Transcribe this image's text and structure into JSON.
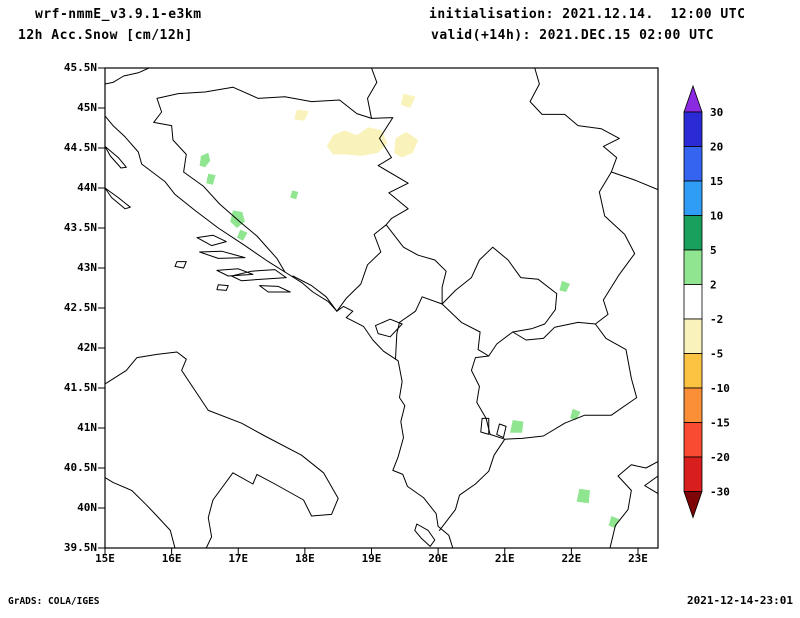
{
  "header": {
    "model": "wrf-nmmE_v3.9.1-e3km",
    "product": "12h Acc.Snow [cm/12h]",
    "initialisation": "initialisation: 2021.12.14.  12:00 UTC",
    "valid": "valid(+14h): 2021.DEC.15 02:00 UTC"
  },
  "footer": {
    "credit": "GrADS: COLA/IGES",
    "render_time": "2021-12-14-23:01"
  },
  "chart_data": {
    "type": "map",
    "title": "12h Acc.Snow [cm/12h]",
    "model": "wrf-nmmE_v3.9.1-e3km",
    "init_time": "2021.12.14. 12:00 UTC",
    "valid_time": "2021.DEC.15 02:00 UTC",
    "lead_hours": 14,
    "units": "cm/12h",
    "lon_range": [
      15,
      23.3
    ],
    "lat_range": [
      39.5,
      45.5
    ],
    "grid": false,
    "lat_ticks": [
      {
        "label": "45.5N",
        "value": 45.5
      },
      {
        "label": "45N",
        "value": 45
      },
      {
        "label": "44.5N",
        "value": 44.5
      },
      {
        "label": "44N",
        "value": 44
      },
      {
        "label": "43.5N",
        "value": 43.5
      },
      {
        "label": "43N",
        "value": 43
      },
      {
        "label": "42.5N",
        "value": 42.5
      },
      {
        "label": "42N",
        "value": 42
      },
      {
        "label": "41.5N",
        "value": 41.5
      },
      {
        "label": "41N",
        "value": 41
      },
      {
        "label": "40.5N",
        "value": 40.5
      },
      {
        "label": "40N",
        "value": 40
      },
      {
        "label": "39.5N",
        "value": 39.5
      }
    ],
    "lon_ticks": [
      {
        "label": "15E",
        "value": 15
      },
      {
        "label": "16E",
        "value": 16
      },
      {
        "label": "17E",
        "value": 17
      },
      {
        "label": "18E",
        "value": 18
      },
      {
        "label": "19E",
        "value": 19
      },
      {
        "label": "20E",
        "value": 20
      },
      {
        "label": "21E",
        "value": 21
      },
      {
        "label": "22E",
        "value": 22
      },
      {
        "label": "23E",
        "value": 23
      }
    ],
    "colorbar": {
      "position": "right",
      "levels": [
        30,
        20,
        15,
        10,
        5,
        2,
        -2,
        -5,
        -10,
        -15,
        -20,
        -30
      ],
      "segment_colors": [
        "#2b2bd5",
        "#3565f0",
        "#2f9cf5",
        "#18a05c",
        "#90e590",
        "#ffffff",
        "#f9f3bb",
        "#fcc342",
        "#fa8f38",
        "#f84b31",
        "#d91e1e"
      ],
      "arrow_top_color": "#8a2be2",
      "arrow_bottom_color": "#7e0606"
    },
    "regions": [
      {
        "band": "2-5",
        "color": "#90e590",
        "points": [
          [
            16.42,
            44.28
          ],
          [
            16.44,
            44.4
          ],
          [
            16.55,
            44.44
          ],
          [
            16.58,
            44.34
          ],
          [
            16.5,
            44.26
          ]
        ]
      },
      {
        "band": "2-5",
        "color": "#90e590",
        "points": [
          [
            16.52,
            44.06
          ],
          [
            16.55,
            44.18
          ],
          [
            16.66,
            44.16
          ],
          [
            16.62,
            44.04
          ]
        ]
      },
      {
        "band": "2-5",
        "color": "#90e590",
        "points": [
          [
            16.88,
            43.58
          ],
          [
            16.92,
            43.72
          ],
          [
            17.06,
            43.7
          ],
          [
            17.1,
            43.58
          ],
          [
            16.98,
            43.5
          ]
        ]
      },
      {
        "band": "2-5",
        "color": "#90e590",
        "points": [
          [
            16.98,
            43.38
          ],
          [
            17.03,
            43.48
          ],
          [
            17.14,
            43.44
          ],
          [
            17.07,
            43.34
          ]
        ]
      },
      {
        "band": "2-5",
        "color": "#90e590",
        "points": [
          [
            17.78,
            43.88
          ],
          [
            17.81,
            43.97
          ],
          [
            17.9,
            43.95
          ],
          [
            17.87,
            43.86
          ]
        ]
      },
      {
        "band": "2-5",
        "color": "#90e590",
        "points": [
          [
            21.82,
            42.72
          ],
          [
            21.86,
            42.84
          ],
          [
            21.98,
            42.8
          ],
          [
            21.92,
            42.7
          ]
        ]
      },
      {
        "band": "2-5",
        "color": "#90e590",
        "points": [
          [
            21.08,
            40.94
          ],
          [
            21.12,
            41.1
          ],
          [
            21.28,
            41.08
          ],
          [
            21.26,
            40.94
          ]
        ]
      },
      {
        "band": "2-5",
        "color": "#90e590",
        "points": [
          [
            21.98,
            41.12
          ],
          [
            22.02,
            41.24
          ],
          [
            22.14,
            41.2
          ],
          [
            22.07,
            41.1
          ]
        ]
      },
      {
        "band": "2-5",
        "color": "#90e590",
        "points": [
          [
            22.08,
            40.08
          ],
          [
            22.12,
            40.24
          ],
          [
            22.28,
            40.22
          ],
          [
            22.26,
            40.06
          ]
        ]
      },
      {
        "band": "2-5",
        "color": "#90e590",
        "points": [
          [
            22.56,
            39.78
          ],
          [
            22.6,
            39.9
          ],
          [
            22.72,
            39.86
          ],
          [
            22.66,
            39.75
          ]
        ]
      },
      {
        "band": "-5--2",
        "color": "#f9f3bb",
        "points": [
          [
            18.33,
            44.52
          ],
          [
            18.42,
            44.66
          ],
          [
            18.6,
            44.72
          ],
          [
            18.78,
            44.66
          ],
          [
            18.95,
            44.76
          ],
          [
            19.15,
            44.72
          ],
          [
            19.24,
            44.56
          ],
          [
            19.1,
            44.44
          ],
          [
            18.85,
            44.4
          ],
          [
            18.6,
            44.42
          ],
          [
            18.42,
            44.42
          ]
        ]
      },
      {
        "band": "-5--2",
        "color": "#f9f3bb",
        "points": [
          [
            19.34,
            44.44
          ],
          [
            19.36,
            44.62
          ],
          [
            19.52,
            44.7
          ],
          [
            19.7,
            44.6
          ],
          [
            19.62,
            44.44
          ],
          [
            19.46,
            44.38
          ]
        ]
      },
      {
        "band": "-5--2",
        "color": "#f9f3bb",
        "points": [
          [
            19.44,
            45.04
          ],
          [
            19.48,
            45.18
          ],
          [
            19.66,
            45.14
          ],
          [
            19.58,
            45.0
          ]
        ]
      },
      {
        "band": "-5--2",
        "color": "#f9f3bb",
        "points": [
          [
            17.84,
            44.86
          ],
          [
            17.88,
            44.98
          ],
          [
            18.06,
            44.96
          ],
          [
            17.99,
            44.84
          ]
        ]
      }
    ]
  }
}
